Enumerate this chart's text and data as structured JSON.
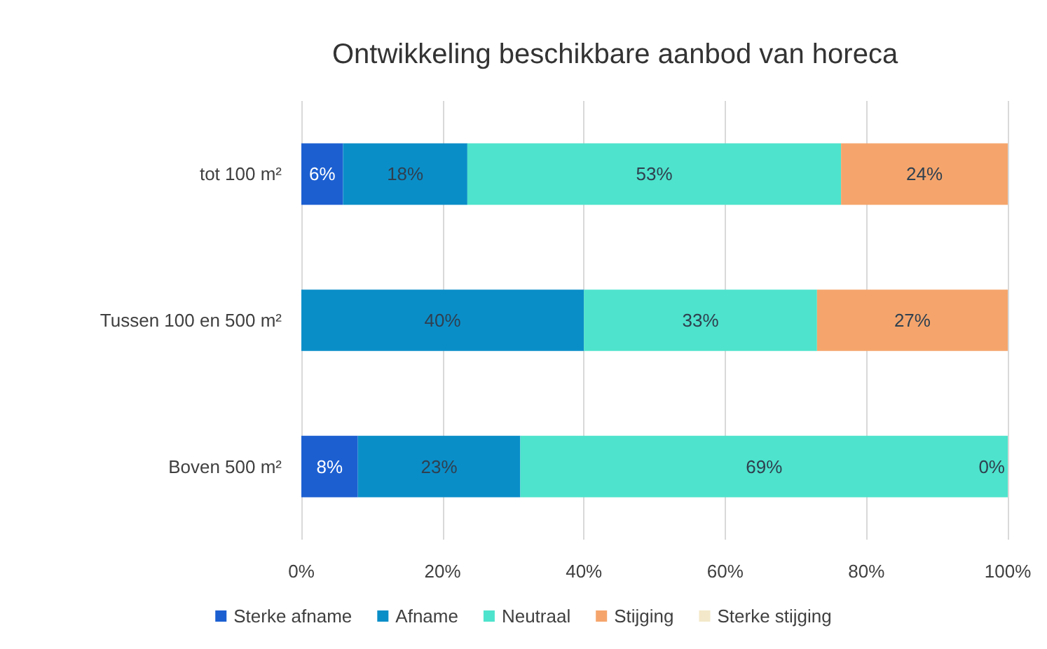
{
  "chart_data": {
    "type": "bar",
    "orientation": "horizontal",
    "stacked": true,
    "title": "Ontwikkeling beschikbare aanbod van horeca",
    "categories": [
      "tot 100 m²",
      "Tussen 100 en 500 m²",
      "Boven 500 m²"
    ],
    "series": [
      {
        "name": "Sterke afname",
        "color": "#1c5fd1",
        "values": [
          5.9,
          null,
          8
        ],
        "value_labels": [
          "6%",
          null,
          "8%"
        ]
      },
      {
        "name": "Afname",
        "color": "#0a8ec8",
        "values": [
          17.6,
          40,
          23
        ],
        "value_labels": [
          "18%",
          "40%",
          "23%"
        ]
      },
      {
        "name": "Neutraal",
        "color": "#4ee3cc",
        "values": [
          52.9,
          33,
          69
        ],
        "value_labels": [
          "53%",
          "33%",
          "69%"
        ]
      },
      {
        "name": "Stijging",
        "color": "#f5a56c",
        "values": [
          23.6,
          27,
          0
        ],
        "value_labels": [
          "24%",
          "27%",
          "0%"
        ]
      },
      {
        "name": "Sterke stijging",
        "color": "#f3e8c9",
        "values": [
          0,
          0,
          0
        ],
        "value_labels": [
          null,
          null,
          null
        ]
      }
    ],
    "xlim": [
      0,
      100
    ],
    "xticks": [
      {
        "value": 0,
        "label": "0%"
      },
      {
        "value": 20,
        "label": "20%"
      },
      {
        "value": 40,
        "label": "40%"
      },
      {
        "value": 60,
        "label": "60%"
      },
      {
        "value": 80,
        "label": "80%"
      },
      {
        "value": 100,
        "label": "100%"
      }
    ],
    "grid": "x",
    "legend": "bottom"
  }
}
